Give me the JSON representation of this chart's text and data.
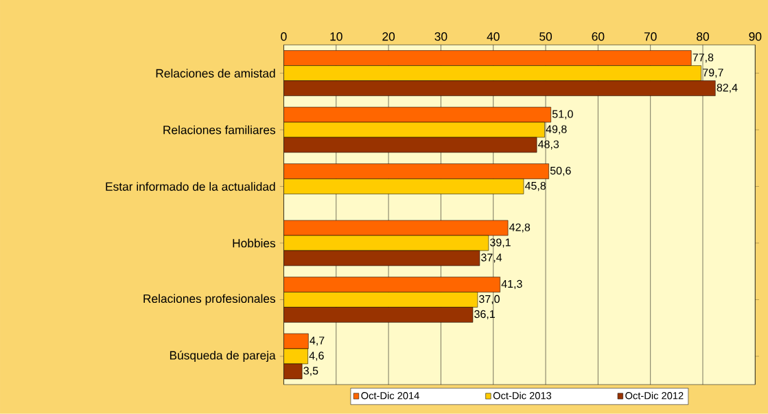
{
  "chart_data": {
    "type": "bar",
    "orientation": "horizontal",
    "categories": [
      "Relaciones de amistad",
      "Relaciones familiares",
      "Estar informado de la actualidad",
      "Hobbies",
      "Relaciones profesionales",
      "Búsqueda de pareja"
    ],
    "series": [
      {
        "name": "Oct-Dic 2014",
        "color": "#ff6600",
        "values": [
          77.8,
          51.0,
          50.6,
          42.8,
          41.3,
          4.7
        ],
        "value_labels": [
          "77,8",
          "51,0",
          "50,6",
          "42,8",
          "41,3",
          "4,7"
        ]
      },
      {
        "name": "Oct-Dic 2013",
        "color": "#ffcc00",
        "values": [
          79.7,
          49.8,
          45.8,
          39.1,
          37.0,
          4.6
        ],
        "value_labels": [
          "79,7",
          "49,8",
          "45,8",
          "39,1",
          "37,0",
          "4,6"
        ]
      },
      {
        "name": "Oct-Dic 2012",
        "color": "#993300",
        "values": [
          82.4,
          48.3,
          null,
          37.4,
          36.1,
          3.5
        ],
        "value_labels": [
          "82,4",
          "48,3",
          null,
          "37,4",
          "36,1",
          "3,5"
        ]
      }
    ],
    "xlim": [
      0,
      90
    ],
    "xticks": [
      0,
      10,
      20,
      30,
      40,
      50,
      60,
      70,
      80,
      90
    ],
    "grid": "x",
    "legend": "bottom"
  }
}
